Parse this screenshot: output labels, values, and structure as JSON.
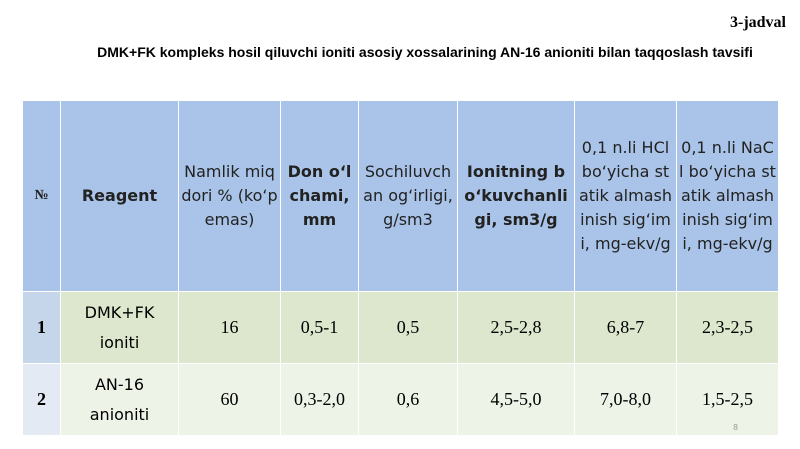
{
  "header": {
    "label": "3-jadval",
    "title": "DMK+FK kompleks hosil qiluvchi ioniti asosiy xossalarining AN-16 anioniti bilan taqqoslash tavsifi"
  },
  "table": {
    "columns": [
      "№",
      "Reagent",
      "Namlik miqdori % (ko‘p emas)",
      "Don o‘lchami, mm",
      "Sochiluvchan og‘irligi, g/sm3",
      "Ionitning bo‘kuvchanligi, sm3/g",
      "0,1 n.li HCl bo‘yicha statik almashinish sig‘imi, mg-ekv/g",
      "0,1 n.li NaCl bo‘yicha statik almashinish sig‘imi, mg-ekv/g"
    ],
    "rows": [
      [
        "1",
        "DMK+FK ioniti",
        "16",
        "0,5-1",
        "0,5",
        "2,5-2,8",
        "6,8-7",
        "2,3-2,5"
      ],
      [
        "2",
        "AN-16 anioniti",
        "60",
        "0,3-2,0",
        "0,6",
        "4,5-5,0",
        "7,0-8,0",
        "1,5-2,5"
      ]
    ]
  },
  "page_number": "8"
}
